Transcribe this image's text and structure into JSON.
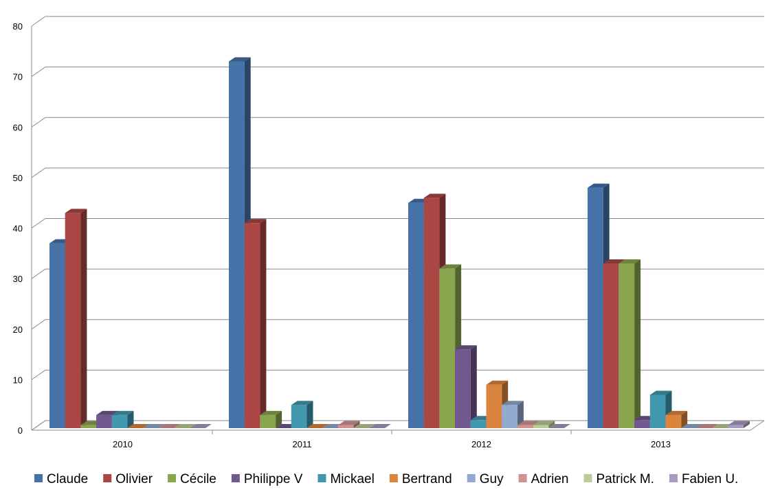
{
  "chart_data": {
    "type": "bar3d",
    "categories": [
      "2010",
      "2011",
      "2012",
      "2013"
    ],
    "ylim": [
      0,
      80
    ],
    "yticks": [
      0,
      10,
      20,
      30,
      40,
      50,
      60,
      70,
      80
    ],
    "grid": true,
    "legend": "bottom",
    "series": [
      {
        "name": "Claude",
        "color": "#4572a7",
        "values": [
          37,
          73,
          45,
          48
        ]
      },
      {
        "name": "Olivier",
        "color": "#aa4643",
        "values": [
          43,
          41,
          46,
          33
        ]
      },
      {
        "name": "Cécile",
        "color": "#89a54e",
        "values": [
          1,
          3,
          32,
          33
        ]
      },
      {
        "name": "Philippe V",
        "color": "#71588f",
        "values": [
          3,
          0,
          16,
          2
        ]
      },
      {
        "name": "Mickael",
        "color": "#4198af",
        "values": [
          3,
          5,
          2,
          7
        ]
      },
      {
        "name": "Bertrand",
        "color": "#db843d",
        "values": [
          0,
          0,
          9,
          3
        ]
      },
      {
        "name": "Guy",
        "color": "#93a9cf",
        "values": [
          0,
          0,
          5,
          0
        ]
      },
      {
        "name": "Adrien",
        "color": "#d19392",
        "values": [
          0,
          1,
          1,
          0
        ]
      },
      {
        "name": "Patrick M.",
        "color": "#b9cd96",
        "values": [
          0,
          0,
          1,
          0
        ]
      },
      {
        "name": "Fabien U.",
        "color": "#a99bbd",
        "values": [
          0,
          0,
          0,
          1
        ]
      }
    ]
  }
}
